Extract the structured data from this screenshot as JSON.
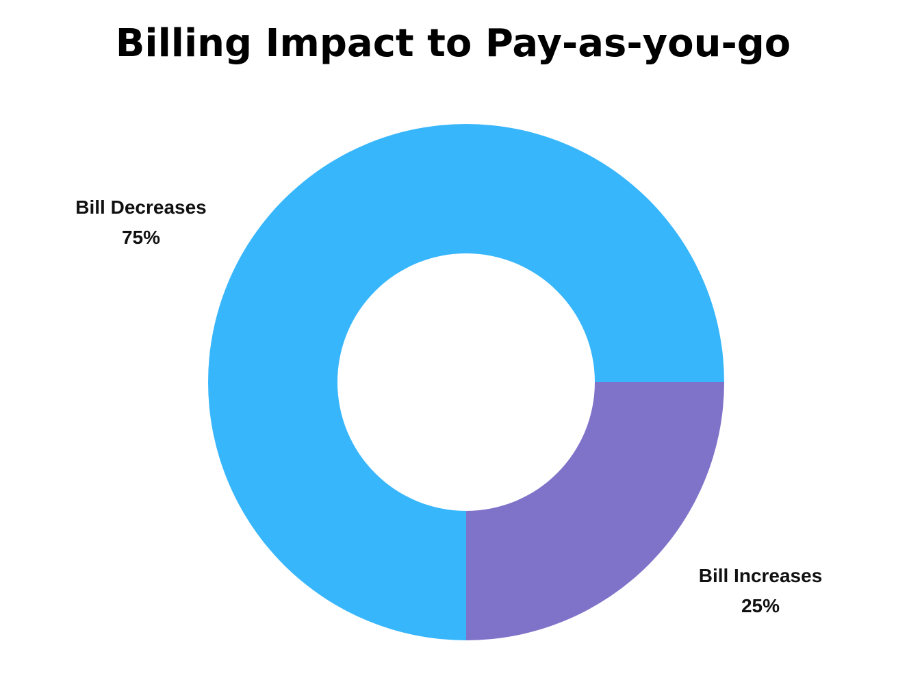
{
  "chart_data": {
    "type": "donut",
    "title": "Billing Impact to Pay-as-you-go",
    "categories": [
      "Bill Decreases",
      "Bill Increases"
    ],
    "values": [
      75,
      25
    ],
    "value_labels": [
      "75%",
      "25%"
    ],
    "colors": [
      "#38b6fc",
      "#7f72c9"
    ]
  }
}
